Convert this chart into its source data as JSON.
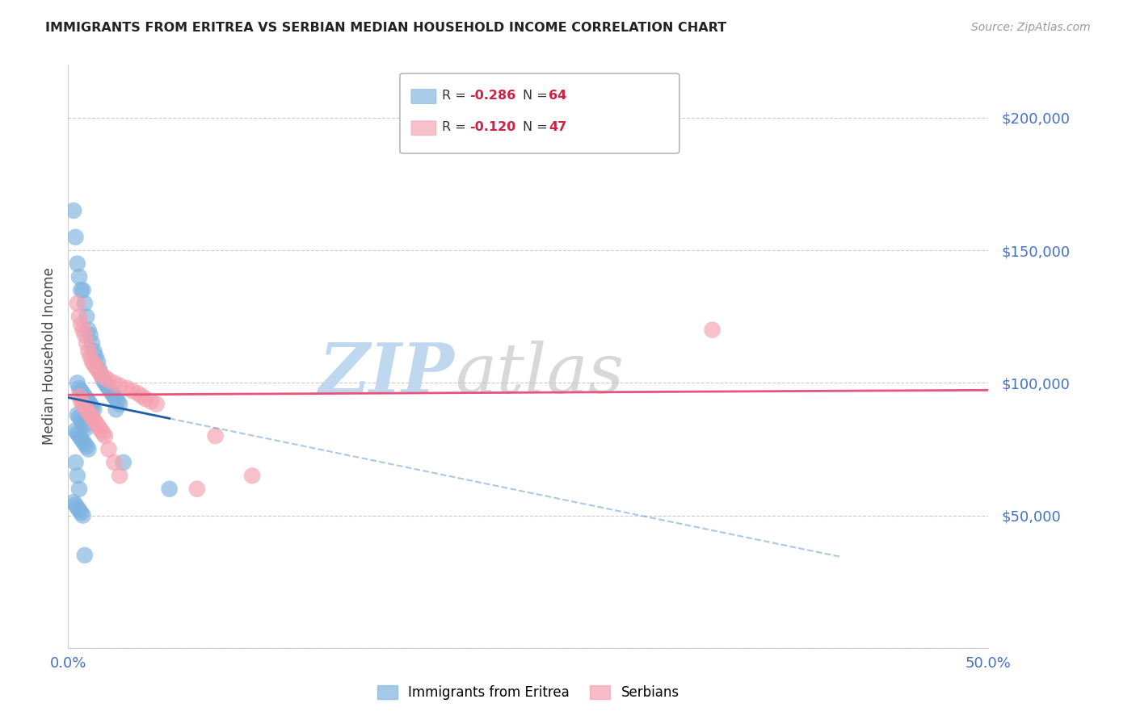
{
  "title": "IMMIGRANTS FROM ERITREA VS SERBIAN MEDIAN HOUSEHOLD INCOME CORRELATION CHART",
  "source": "Source: ZipAtlas.com",
  "ylabel": "Median Household Income",
  "xlim": [
    0.0,
    0.5
  ],
  "ylim": [
    0,
    220000
  ],
  "yticks": [
    0,
    50000,
    100000,
    150000,
    200000
  ],
  "xticks": [
    0.0,
    0.1,
    0.2,
    0.3,
    0.4,
    0.5
  ],
  "blue_R": -0.286,
  "blue_N": 64,
  "pink_R": -0.12,
  "pink_N": 47,
  "blue_color": "#7eb3e0",
  "pink_color": "#f4a0b0",
  "blue_line_color": "#1a5fa8",
  "pink_line_color": "#e8547a",
  "watermark_zip": "ZIP",
  "watermark_atlas": "atlas",
  "watermark_color_zip": "#b8d4ee",
  "watermark_color_atlas": "#c8c8c8",
  "background_color": "#ffffff",
  "grid_color": "#cccccc",
  "ytick_label_color": "#4472c4",
  "xtick_label_color": "#4472c4",
  "blue_scatter_x": [
    0.003,
    0.004,
    0.005,
    0.006,
    0.007,
    0.008,
    0.009,
    0.01,
    0.011,
    0.012,
    0.013,
    0.014,
    0.015,
    0.016,
    0.017,
    0.018,
    0.019,
    0.02,
    0.021,
    0.022,
    0.023,
    0.024,
    0.025,
    0.026,
    0.027,
    0.028,
    0.005,
    0.006,
    0.007,
    0.008,
    0.009,
    0.01,
    0.011,
    0.012,
    0.013,
    0.014,
    0.005,
    0.006,
    0.007,
    0.008,
    0.009,
    0.01,
    0.004,
    0.005,
    0.006,
    0.007,
    0.008,
    0.009,
    0.01,
    0.011,
    0.025,
    0.026,
    0.03,
    0.055,
    0.004,
    0.005,
    0.006,
    0.003,
    0.004,
    0.005,
    0.006,
    0.007,
    0.008,
    0.009
  ],
  "blue_scatter_y": [
    165000,
    155000,
    145000,
    140000,
    135000,
    135000,
    130000,
    125000,
    120000,
    118000,
    115000,
    112000,
    110000,
    108000,
    105000,
    103000,
    101000,
    100000,
    99000,
    98000,
    97000,
    96000,
    95000,
    94000,
    93000,
    92000,
    100000,
    98000,
    97000,
    96000,
    95000,
    94000,
    93000,
    92000,
    91000,
    90000,
    88000,
    87000,
    86000,
    85000,
    84000,
    83000,
    82000,
    81000,
    80000,
    79000,
    78000,
    77000,
    76000,
    75000,
    95000,
    90000,
    70000,
    60000,
    70000,
    65000,
    60000,
    55000,
    54000,
    53000,
    52000,
    51000,
    50000,
    35000
  ],
  "pink_scatter_x": [
    0.005,
    0.006,
    0.007,
    0.008,
    0.009,
    0.01,
    0.011,
    0.012,
    0.013,
    0.014,
    0.015,
    0.016,
    0.017,
    0.018,
    0.02,
    0.022,
    0.025,
    0.028,
    0.032,
    0.035,
    0.038,
    0.04,
    0.042,
    0.045,
    0.048,
    0.35,
    0.006,
    0.007,
    0.008,
    0.009,
    0.01,
    0.011,
    0.012,
    0.013,
    0.014,
    0.015,
    0.016,
    0.017,
    0.018,
    0.019,
    0.02,
    0.022,
    0.025,
    0.028,
    0.07,
    0.08,
    0.1
  ],
  "pink_scatter_y": [
    130000,
    125000,
    122000,
    120000,
    118000,
    115000,
    112000,
    110000,
    108000,
    107000,
    106000,
    105000,
    104000,
    103000,
    102000,
    101000,
    100000,
    99000,
    98000,
    97000,
    96000,
    95000,
    94000,
    93000,
    92000,
    120000,
    95000,
    93000,
    92000,
    91000,
    90000,
    89000,
    88000,
    87000,
    86000,
    85000,
    84000,
    83000,
    82000,
    81000,
    80000,
    75000,
    70000,
    65000,
    60000,
    80000,
    65000
  ]
}
